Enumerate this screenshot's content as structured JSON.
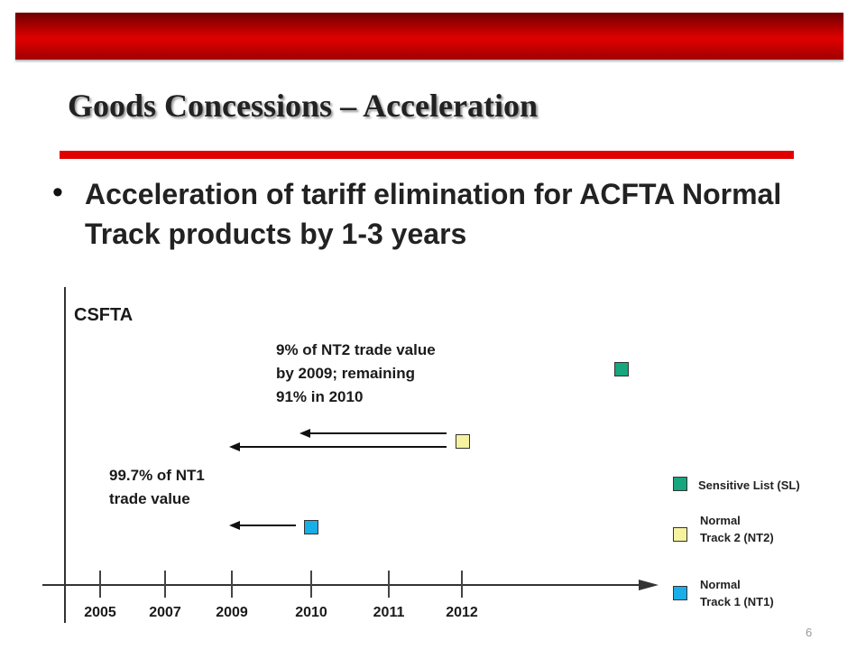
{
  "slide": {
    "title": "Goods Concessions – Acceleration",
    "bullet": "Acceleration of tariff elimination for ACFTA Normal Track products by 1-3 years",
    "page_number": "6"
  },
  "diagram": {
    "axis_label": "CSFTA",
    "years": [
      "2005",
      "2007",
      "2009",
      "2010",
      "2011",
      "2012"
    ],
    "nt2_annotation": [
      "9% of NT2 trade value",
      "by 2009; remaining",
      "91% in 2010"
    ],
    "nt1_annotation": [
      "99.7% of NT1",
      "trade value"
    ]
  },
  "legend": {
    "sl_label": "Sensitive List (SL)",
    "nt2_label": [
      "Normal",
      "Track 2 (NT2)"
    ],
    "nt1_label": [
      "Normal",
      "Track 1 (NT1)"
    ]
  },
  "colors": {
    "banner": "#c00000",
    "title_rule": "#e10000",
    "sl": "#17a67e",
    "nt2": "#f5f3a0",
    "nt1": "#19aee8"
  }
}
